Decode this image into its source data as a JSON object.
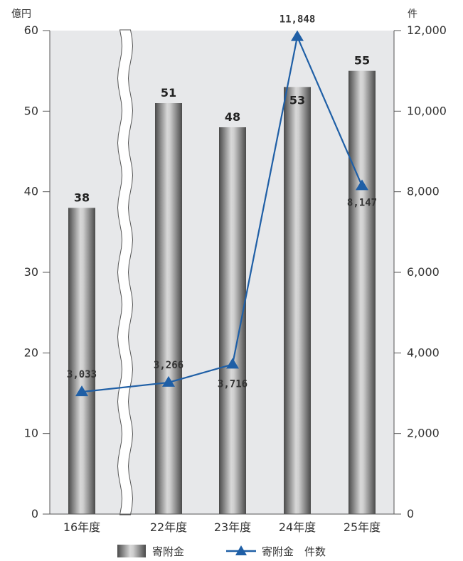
{
  "chart_data": {
    "type": "bar+line",
    "categories": [
      "16年度",
      "22年度",
      "23年度",
      "24年度",
      "25年度"
    ],
    "y_left": {
      "unit": "億円",
      "lim": [
        0,
        60
      ],
      "ticks": [
        "0",
        "10",
        "20",
        "30",
        "40",
        "50",
        "60"
      ]
    },
    "y_right": {
      "unit": "件",
      "lim": [
        0,
        12000
      ],
      "ticks": [
        "0",
        "2,000",
        "4,000",
        "6,000",
        "8,000",
        "10,000",
        "12,000"
      ]
    },
    "series": [
      {
        "name": "寄附金",
        "type": "bar",
        "axis": "left",
        "values": [
          38,
          51,
          48,
          53,
          55
        ],
        "labels": [
          "38",
          "51",
          "48",
          "53",
          "55"
        ]
      },
      {
        "name": "寄附金　件数",
        "type": "line",
        "axis": "right",
        "marker": "triangle",
        "values": [
          3033,
          3266,
          3716,
          11848,
          8147
        ],
        "labels": [
          "3,033",
          "3,266",
          "3,716",
          "11,848",
          "8,147"
        ]
      }
    ],
    "axis_break": "between 16年度 and 22年度",
    "grid": false,
    "legend_position": "bottom",
    "colors": {
      "plot_bg": "#e7e8ea",
      "line": "#1f5fa6",
      "bar_dark": "#4a4a4a",
      "bar_light": "#d8d8d8"
    }
  }
}
